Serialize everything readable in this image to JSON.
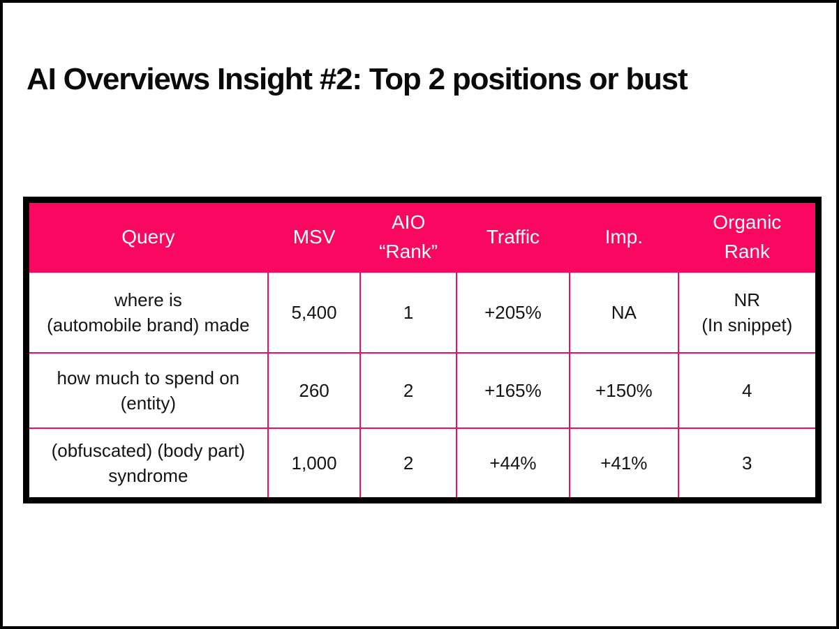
{
  "page": {
    "title": "AI Overviews Insight #2: Top 2 positions or bust"
  },
  "colors": {
    "accent_pink": "#F8095F",
    "table_frame_black": "#000000",
    "header_text": "#FFFFFF",
    "body_text": "#141414",
    "slide_background": "#FFFFFF"
  },
  "chart_data": {
    "type": "table",
    "title": "AI Overviews Insight #2: Top 2 positions or bust",
    "columns": [
      "Query",
      "MSV",
      "AIO\n“Rank”",
      "Traffic",
      "Imp.",
      "Organic\nRank"
    ],
    "rows": [
      [
        "where is\n(automobile brand) made",
        "5,400",
        "1",
        "+205%",
        "NA",
        "NR\n(In snippet)"
      ],
      [
        "how much to spend on\n(entity)",
        "260",
        "2",
        "+165%",
        "+150%",
        "4"
      ],
      [
        "(obfuscated) (body part)\nsyndrome",
        "1,000",
        "2",
        "+44%",
        "+41%",
        "3"
      ]
    ],
    "legend": "none",
    "grid": "pink inner grid lines, thick black outer border",
    "header_style": "solid pink band with white text"
  }
}
